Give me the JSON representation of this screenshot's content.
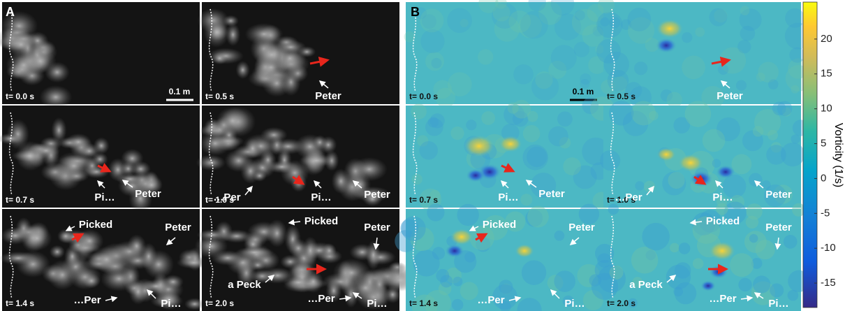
{
  "panels": [
    {
      "label": "A",
      "scale_bar": "0.1 m",
      "frames": [
        {
          "time": "t= 0.0 s",
          "annotations": []
        },
        {
          "time": "t= 0.5 s",
          "annotations": [
            "Peter"
          ]
        },
        {
          "time": "t= 0.7 s",
          "annotations": [
            "Pi…",
            "Peter"
          ]
        },
        {
          "time": "t= 1.0 s",
          "annotations": [
            "…Per",
            "Pi…",
            "Peter"
          ]
        },
        {
          "time": "t= 1.4 s",
          "annotations": [
            "Picked",
            "Peter",
            "…Per",
            "Pi…"
          ]
        },
        {
          "time": "t= 2.0 s",
          "annotations": [
            "Picked",
            "Peter",
            "a Peck",
            "…Per",
            "Pi…"
          ]
        }
      ]
    },
    {
      "label": "B",
      "scale_bar": "0.1 m",
      "frames": [
        {
          "time": "t= 0.0 s",
          "annotations": []
        },
        {
          "time": "t= 0.5 s",
          "annotations": [
            "Peter"
          ]
        },
        {
          "time": "t= 0.7 s",
          "annotations": [
            "Pi…",
            "Peter"
          ]
        },
        {
          "time": "t= 1.0 s",
          "annotations": [
            "…Per",
            "Pi…",
            "Peter"
          ]
        },
        {
          "time": "t= 1.4 s",
          "annotations": [
            "Picked",
            "Peter",
            "…Per",
            "Pi…"
          ]
        },
        {
          "time": "t= 2.0 s",
          "annotations": [
            "Picked",
            "Peter",
            "a Peck",
            "…Per",
            "Pi…"
          ]
        }
      ]
    }
  ],
  "colorbar": {
    "label": "Vorticity (1/s)",
    "lim": [
      -18.5,
      25.3
    ],
    "ticks": [
      20,
      15,
      10,
      5,
      0,
      -5,
      -10,
      -15
    ]
  }
}
